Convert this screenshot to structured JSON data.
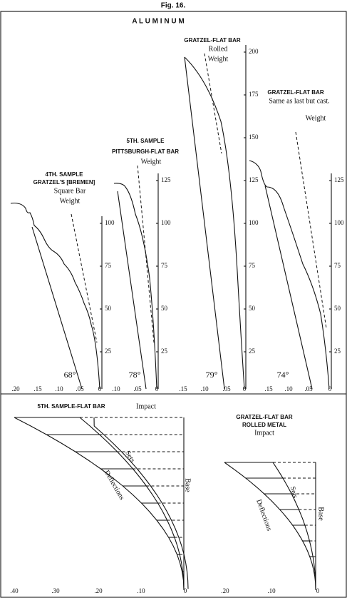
{
  "figure_label": "Fig. 16.",
  "title": "A L U M I N U M",
  "panels": [
    {
      "heading": [
        "4TH. SAMPLE",
        "GRATZEL'S [BREMEN]"
      ],
      "subtitle": "Square Bar",
      "weight": "Weight",
      "yticks": [
        "25",
        "50",
        "75",
        "100"
      ],
      "xticks": [
        ".20",
        ".15",
        ".10",
        ".05",
        "0"
      ],
      "angle": "68°"
    },
    {
      "heading": [
        "5TH. SAMPLE",
        "PITTSBURGH-FLAT BAR"
      ],
      "weight": "Weight",
      "yticks": [
        "25",
        "50",
        "75",
        "100",
        "125"
      ],
      "xticks": [
        ".10",
        ".05",
        "0"
      ],
      "angle": "78°"
    },
    {
      "heading": [
        "GRATZEL-FLAT BAR"
      ],
      "subtitle": "Rolled",
      "weight": "Weight",
      "yticks": [
        "25",
        "50",
        "75",
        "100",
        "125",
        "150",
        "175",
        "200"
      ],
      "xticks": [
        ".15",
        ".10",
        ".05",
        "0"
      ],
      "angle": "79°"
    },
    {
      "heading": [
        "GRATZEL-FLAT BAR"
      ],
      "subtitle": "Same as last but cast.",
      "weight": "Weight",
      "yticks": [
        "25",
        "50",
        "75",
        "100",
        "125"
      ],
      "xticks": [
        ".15",
        ".10",
        ".05",
        "0"
      ],
      "angle": "74°"
    }
  ],
  "impact_panels": [
    {
      "heading": [
        "5TH. SAMPLE-FLAT BAR"
      ],
      "subtitle": "Impact",
      "sets": "Sets",
      "deflections": "Deflections",
      "base": "Base",
      "xticks": [
        ".40",
        ".30",
        ".20",
        ".10",
        "0"
      ]
    },
    {
      "heading": [
        "GRATZEL-FLAT BAR",
        "ROLLED METAL"
      ],
      "subtitle": "Impact",
      "sets": "Sets",
      "deflections": "Deflections",
      "base": "Base",
      "xticks": [
        ".20",
        ".10",
        "0"
      ]
    }
  ]
}
